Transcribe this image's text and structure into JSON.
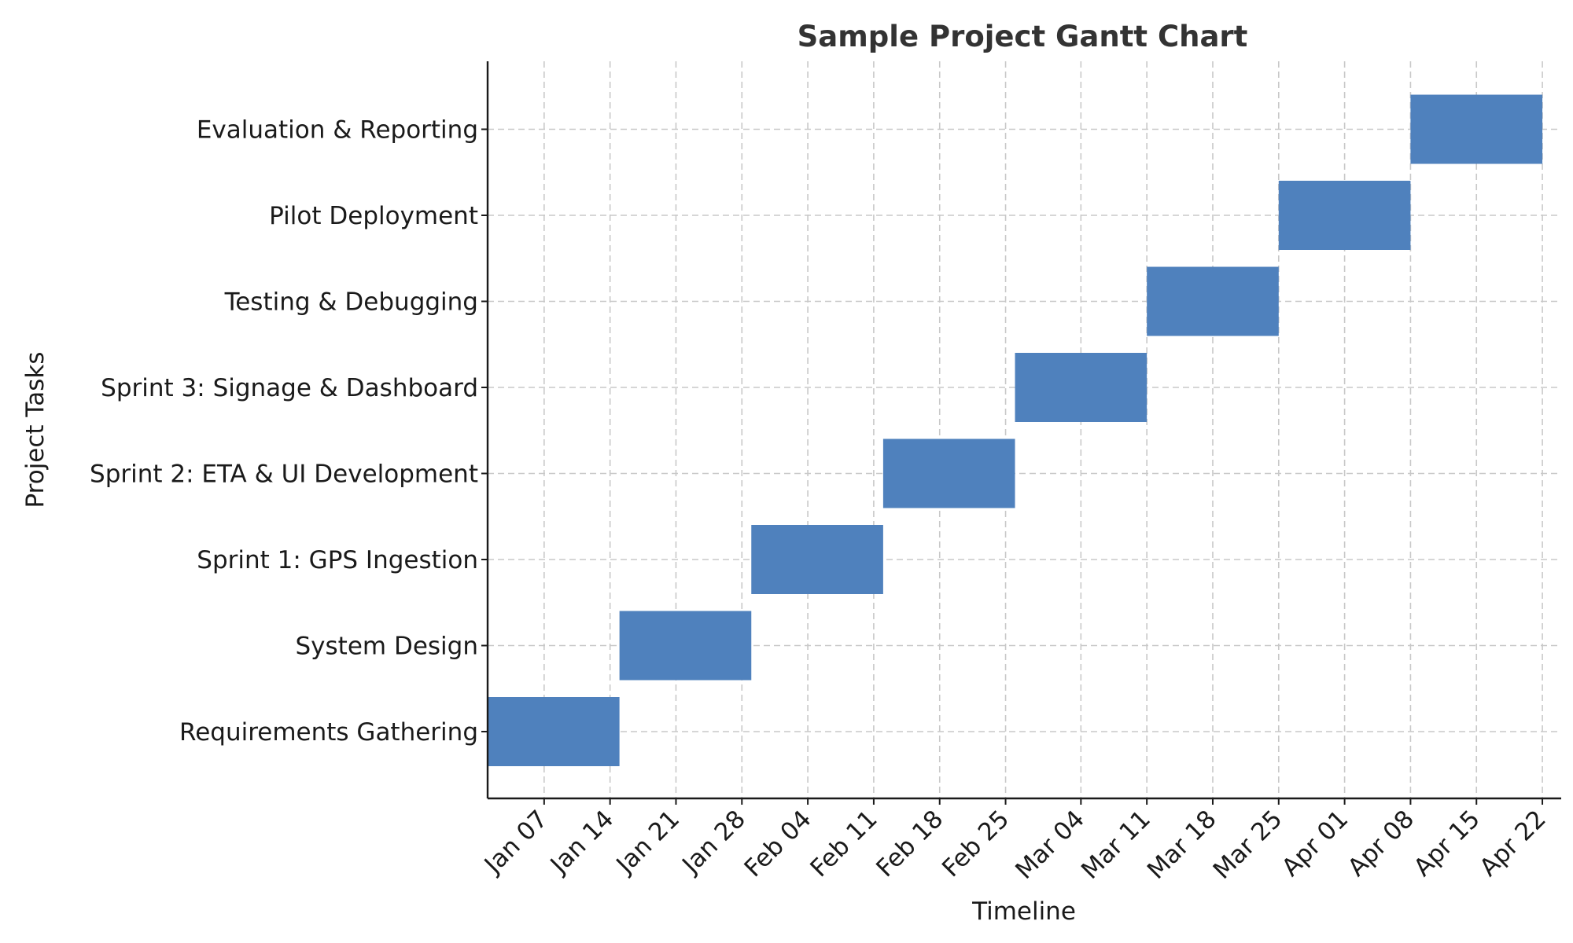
{
  "chart_data": {
    "type": "gantt",
    "title": "Sample Project Gantt Chart",
    "xlabel": "Timeline",
    "ylabel": "Project Tasks",
    "grid": true,
    "bar_color": "#4f81bd",
    "xlim": [
      "2024-01-01",
      "2024-04-24"
    ],
    "x_ticks": [
      "2024-01-07",
      "2024-01-14",
      "2024-01-21",
      "2024-01-28",
      "2024-02-04",
      "2024-02-11",
      "2024-02-18",
      "2024-02-25",
      "2024-03-04",
      "2024-03-11",
      "2024-03-18",
      "2024-03-25",
      "2024-04-01",
      "2024-04-08",
      "2024-04-15",
      "2024-04-22"
    ],
    "x_tick_labels": [
      "Jan 07",
      "Jan 14",
      "Jan 21",
      "Jan 28",
      "Feb 04",
      "Feb 11",
      "Feb 18",
      "Feb 25",
      "Mar 04",
      "Mar 11",
      "Mar 18",
      "Mar 25",
      "Apr 01",
      "Apr 08",
      "Apr 15",
      "Apr 22"
    ],
    "tasks": [
      {
        "name": "Requirements Gathering",
        "start": "2024-01-01",
        "end": "2024-01-14"
      },
      {
        "name": "System Design",
        "start": "2024-01-15",
        "end": "2024-01-28"
      },
      {
        "name": "Sprint 1: GPS Ingestion",
        "start": "2024-01-29",
        "end": "2024-02-11"
      },
      {
        "name": "Sprint 2: ETA & UI Development",
        "start": "2024-02-12",
        "end": "2024-02-25"
      },
      {
        "name": "Sprint 3: Signage & Dashboard",
        "start": "2024-02-26",
        "end": "2024-03-10"
      },
      {
        "name": "Testing & Debugging",
        "start": "2024-03-11",
        "end": "2024-03-24"
      },
      {
        "name": "Pilot Deployment",
        "start": "2024-03-25",
        "end": "2024-04-07"
      },
      {
        "name": "Evaluation & Reporting",
        "start": "2024-04-08",
        "end": "2024-04-21"
      }
    ]
  }
}
